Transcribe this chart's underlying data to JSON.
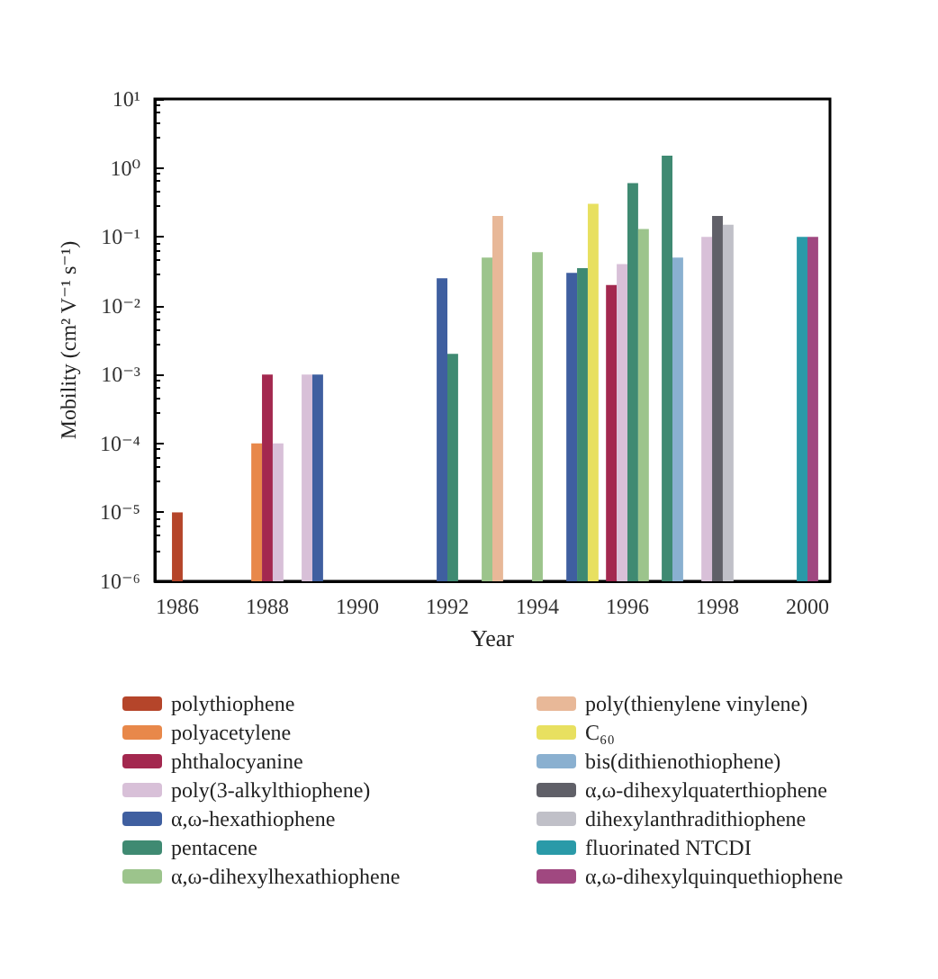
{
  "chart_data": {
    "type": "bar",
    "xlabel": "Year",
    "ylabel": "Mobility (cm² V⁻¹ s⁻¹)",
    "categories": [
      "1986",
      null,
      "1988",
      null,
      "1990",
      null,
      "1992",
      null,
      "1994",
      null,
      "1996",
      null,
      "1998",
      null,
      "2000"
    ],
    "log": "y",
    "ylim": [
      1e-06,
      10
    ],
    "yticks": [
      {
        "value": 1e-06,
        "label": "10⁻⁶"
      },
      {
        "value": 1e-05,
        "label": "10⁻⁵"
      },
      {
        "value": 0.0001,
        "label": "10⁻⁴"
      },
      {
        "value": 0.001,
        "label": "10⁻³"
      },
      {
        "value": 0.01,
        "label": "10⁻²"
      },
      {
        "value": 0.1,
        "label": "10⁻¹"
      },
      {
        "value": 1,
        "label": "10⁰"
      },
      {
        "value": 10,
        "label": "10¹"
      }
    ],
    "grid": false,
    "legend": "bottom",
    "series": [
      {
        "name": "polythiophene",
        "color": "#b5452a",
        "values": [
          1e-05,
          null,
          null,
          null,
          null,
          null,
          null,
          null,
          null,
          null,
          null,
          null,
          null,
          null,
          null
        ]
      },
      {
        "name": "polyacetylene",
        "color": "#e8884a",
        "values": [
          null,
          null,
          0.0001,
          null,
          null,
          null,
          null,
          null,
          null,
          null,
          null,
          null,
          null,
          null,
          null
        ]
      },
      {
        "name": "phthalocyanine",
        "color": "#a3284f",
        "values": [
          null,
          null,
          0.001,
          null,
          null,
          null,
          null,
          null,
          null,
          null,
          0.02,
          null,
          null,
          null,
          null
        ]
      },
      {
        "name": "poly(3-alkylthiophene)",
        "color": "#d8c0d8",
        "values": [
          null,
          null,
          0.0001,
          0.001,
          null,
          null,
          null,
          null,
          null,
          null,
          0.04,
          null,
          0.1,
          null,
          null
        ]
      },
      {
        "name": "α,ω-hexathiophene",
        "color": "#3f5fa0",
        "values": [
          null,
          null,
          null,
          0.001,
          null,
          null,
          0.025,
          null,
          null,
          0.03,
          null,
          null,
          null,
          null,
          null
        ]
      },
      {
        "name": "pentacene",
        "color": "#3f8a72",
        "values": [
          null,
          null,
          null,
          null,
          null,
          null,
          0.002,
          null,
          null,
          0.035,
          0.6,
          1.5,
          null,
          null,
          null
        ]
      },
      {
        "name": "α,ω-dihexylhexathiophene",
        "color": "#9cc48c",
        "values": [
          null,
          null,
          null,
          null,
          null,
          null,
          null,
          0.05,
          0.06,
          null,
          0.13,
          null,
          null,
          null,
          null
        ]
      },
      {
        "name": "poly(thienylene vinylene)",
        "color": "#e8b898",
        "values": [
          null,
          null,
          null,
          null,
          null,
          null,
          null,
          0.2,
          null,
          null,
          null,
          null,
          null,
          null,
          null
        ]
      },
      {
        "name": "C₆₀",
        "color": "#e8e060",
        "values": [
          null,
          null,
          null,
          null,
          null,
          null,
          null,
          null,
          null,
          0.3,
          null,
          null,
          null,
          null,
          null
        ]
      },
      {
        "name": "bis(dithienothiophene)",
        "color": "#8ab0d0",
        "values": [
          null,
          null,
          null,
          null,
          null,
          null,
          null,
          null,
          null,
          null,
          null,
          0.05,
          null,
          null,
          null
        ]
      },
      {
        "name": "α,ω-dihexylquaterthiophene",
        "color": "#606068",
        "values": [
          null,
          null,
          null,
          null,
          null,
          null,
          null,
          null,
          null,
          null,
          null,
          null,
          0.2,
          null,
          null
        ]
      },
      {
        "name": "dihexylanthradithiophene",
        "color": "#c0c0c8",
        "values": [
          null,
          null,
          null,
          null,
          null,
          null,
          null,
          null,
          null,
          null,
          null,
          null,
          0.15,
          null,
          null
        ]
      },
      {
        "name": "fluorinated NTCDI",
        "color": "#2a9aa8",
        "values": [
          null,
          null,
          null,
          null,
          null,
          null,
          null,
          null,
          null,
          null,
          null,
          null,
          null,
          null,
          0.1
        ]
      },
      {
        "name": "α,ω-dihexylquinquethiophene",
        "color": "#a04880",
        "values": [
          null,
          null,
          null,
          null,
          null,
          null,
          null,
          null,
          null,
          null,
          null,
          null,
          null,
          null,
          0.1
        ]
      }
    ]
  }
}
